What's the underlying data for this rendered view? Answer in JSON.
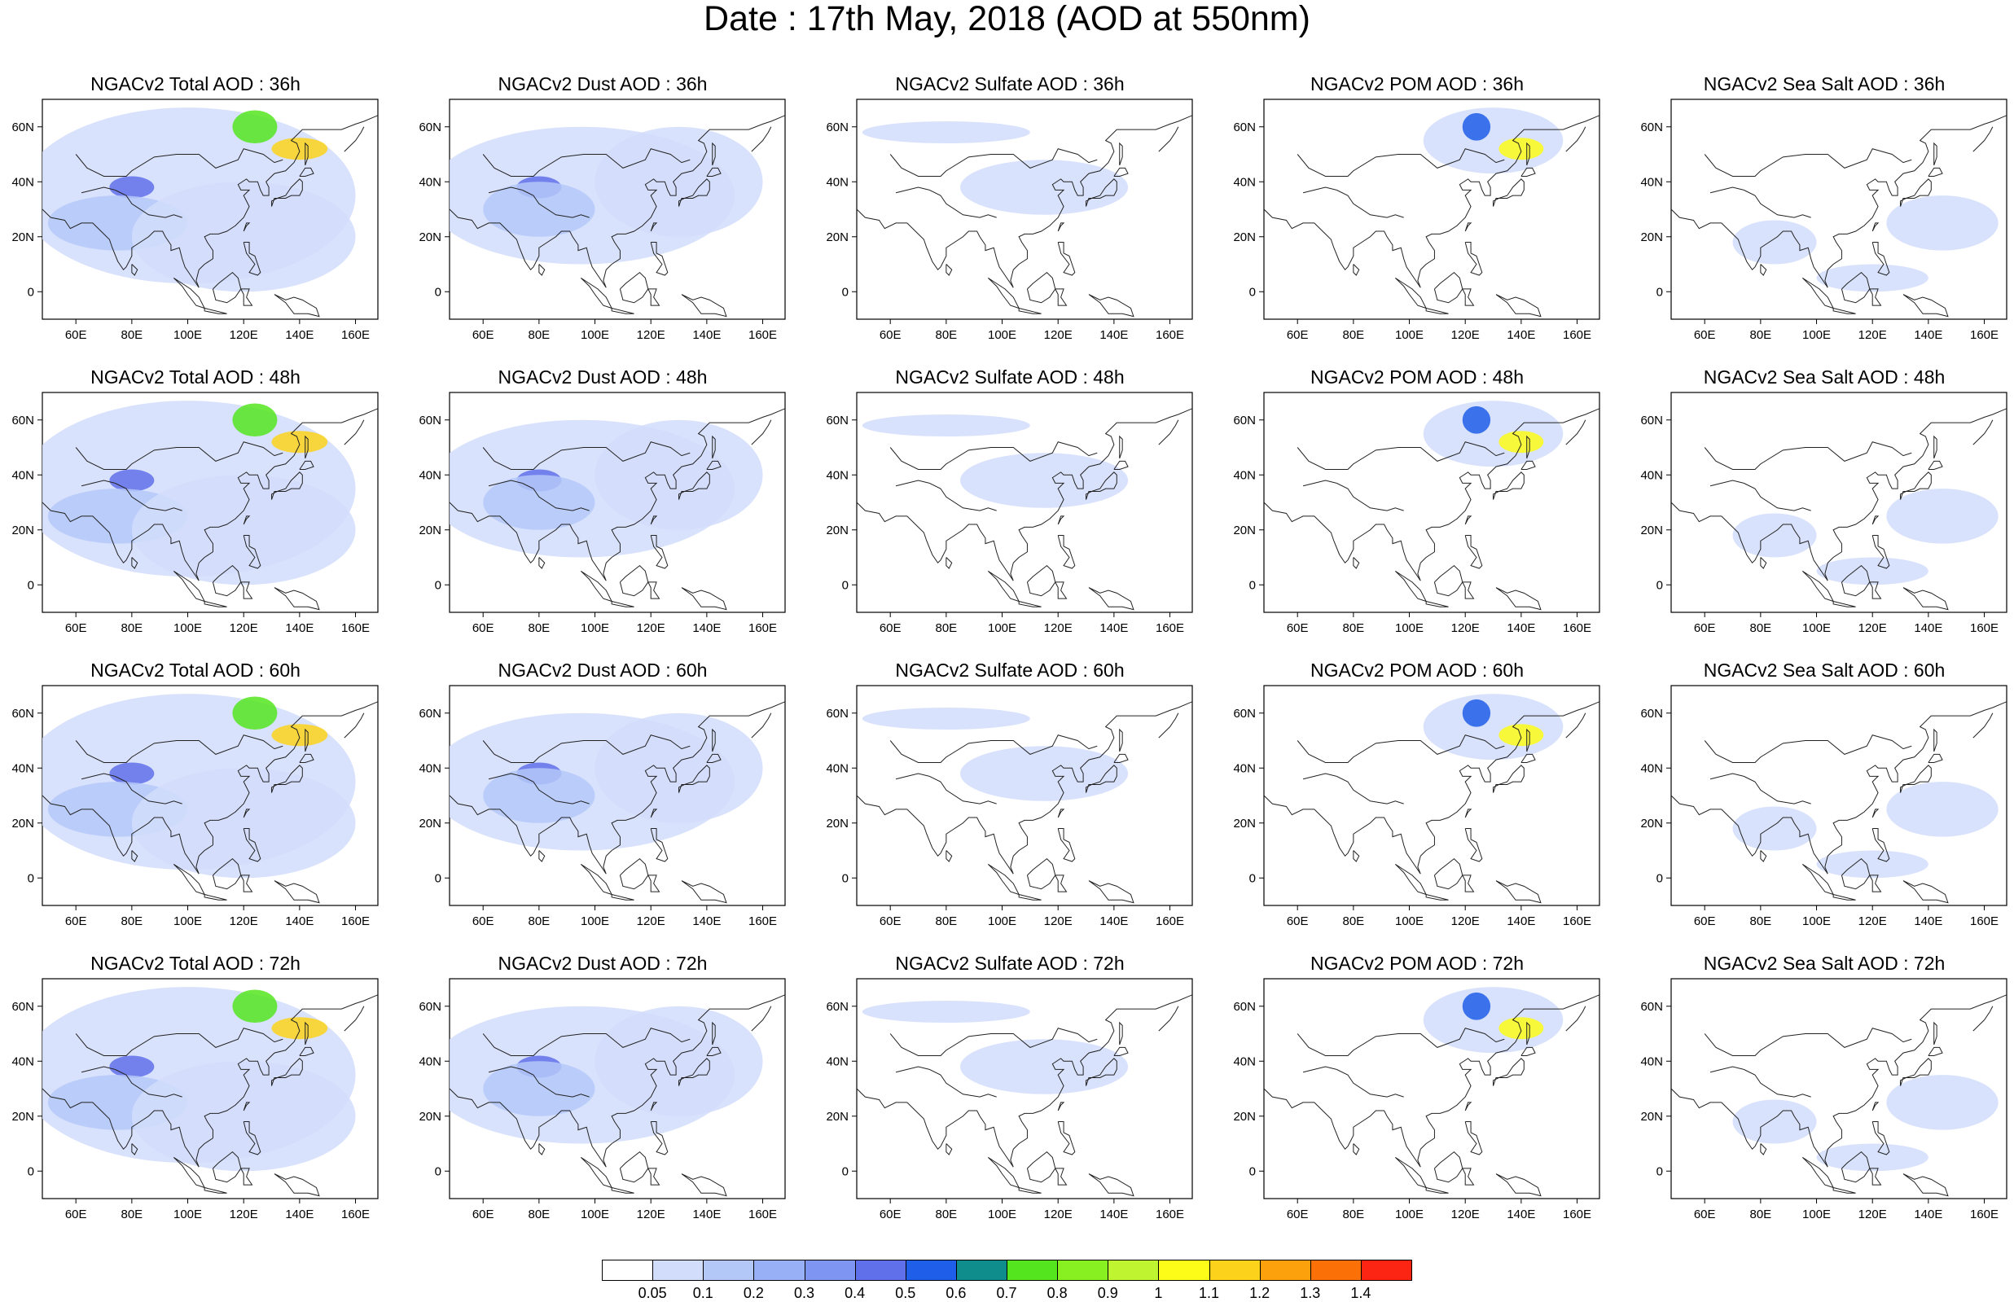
{
  "title": "Date : 17th May, 2018 (AOD at 550nm)",
  "lon_ticks": [
    "60E",
    "80E",
    "100E",
    "120E",
    "140E",
    "160E"
  ],
  "lat_ticks": [
    "60N",
    "40N",
    "20N",
    "0"
  ],
  "domain": {
    "lon_min": 48,
    "lon_max": 168,
    "lat_min": -10,
    "lat_max": 70
  },
  "panels": [
    {
      "title": "NGACv2 Total AOD : 36h",
      "species": "total",
      "hour": 36
    },
    {
      "title": "NGACv2 Dust AOD : 36h",
      "species": "dust",
      "hour": 36
    },
    {
      "title": "NGACv2 Sulfate AOD : 36h",
      "species": "sulfate",
      "hour": 36
    },
    {
      "title": "NGACv2 POM AOD : 36h",
      "species": "pom",
      "hour": 36
    },
    {
      "title": "NGACv2 Sea Salt AOD : 36h",
      "species": "seasalt",
      "hour": 36
    },
    {
      "title": "NGACv2 Total AOD : 48h",
      "species": "total",
      "hour": 48
    },
    {
      "title": "NGACv2 Dust AOD : 48h",
      "species": "dust",
      "hour": 48
    },
    {
      "title": "NGACv2 Sulfate AOD : 48h",
      "species": "sulfate",
      "hour": 48
    },
    {
      "title": "NGACv2 POM AOD : 48h",
      "species": "pom",
      "hour": 48
    },
    {
      "title": "NGACv2 Sea Salt AOD : 48h",
      "species": "seasalt",
      "hour": 48
    },
    {
      "title": "NGACv2 Total AOD : 60h",
      "species": "total",
      "hour": 60
    },
    {
      "title": "NGACv2 Dust AOD : 60h",
      "species": "dust",
      "hour": 60
    },
    {
      "title": "NGACv2 Sulfate AOD : 60h",
      "species": "sulfate",
      "hour": 60
    },
    {
      "title": "NGACv2 POM AOD : 60h",
      "species": "pom",
      "hour": 60
    },
    {
      "title": "NGACv2 Sea Salt AOD : 60h",
      "species": "seasalt",
      "hour": 60
    },
    {
      "title": "NGACv2 Total AOD : 72h",
      "species": "total",
      "hour": 72
    },
    {
      "title": "NGACv2 Dust AOD : 72h",
      "species": "dust",
      "hour": 72
    },
    {
      "title": "NGACv2 Sulfate AOD : 72h",
      "species": "sulfate",
      "hour": 72
    },
    {
      "title": "NGACv2 POM AOD : 72h",
      "species": "pom",
      "hour": 72
    },
    {
      "title": "NGACv2 Sea Salt  AOD : 72h",
      "species": "seasalt",
      "hour": 72
    }
  ],
  "colorbar": {
    "labels": [
      "0.05",
      "0.1",
      "0.2",
      "0.3",
      "0.4",
      "0.5",
      "0.6",
      "0.7",
      "0.8",
      "0.9",
      "1",
      "1.1",
      "1.2",
      "1.3",
      "1.4"
    ],
    "colors": [
      "#ffffff",
      "#d2ddfb",
      "#b4c8f8",
      "#98b1f6",
      "#7e96f2",
      "#6070ea",
      "#1f5ee8",
      "#0f8c8c",
      "#54e51e",
      "#88f020",
      "#bef530",
      "#fcfc18",
      "#fcd21a",
      "#fca00c",
      "#fc7008",
      "#fc2412"
    ]
  }
}
